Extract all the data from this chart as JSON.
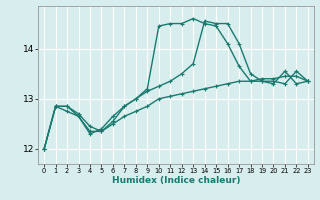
{
  "title": "",
  "xlabel": "Humidex (Indice chaleur)",
  "ylabel": "",
  "background_color": "#d8eeee",
  "grid_color": "#ffffff",
  "line_color": "#1a7a6e",
  "x_values": [
    0,
    1,
    2,
    3,
    4,
    5,
    6,
    7,
    8,
    9,
    10,
    11,
    12,
    13,
    14,
    15,
    16,
    17,
    18,
    19,
    20,
    21,
    22,
    23
  ],
  "line1": [
    12.0,
    12.85,
    12.85,
    12.7,
    12.45,
    12.35,
    12.5,
    12.65,
    12.75,
    12.85,
    13.0,
    13.05,
    13.1,
    13.15,
    13.2,
    13.25,
    13.3,
    13.35,
    13.35,
    13.4,
    13.4,
    13.45,
    13.45,
    13.35
  ],
  "line2": [
    12.0,
    12.85,
    12.85,
    12.65,
    12.35,
    12.35,
    12.55,
    12.85,
    13.0,
    13.2,
    14.45,
    14.5,
    14.5,
    14.6,
    14.5,
    14.45,
    14.1,
    13.65,
    13.35,
    13.35,
    13.3,
    13.55,
    13.3,
    13.35
  ],
  "line3": [
    12.0,
    12.85,
    12.75,
    12.65,
    12.3,
    12.4,
    12.65,
    12.85,
    13.0,
    13.15,
    13.25,
    13.35,
    13.5,
    13.7,
    14.55,
    14.5,
    14.5,
    14.1,
    13.5,
    13.35,
    13.35,
    13.3,
    13.55,
    13.35
  ],
  "yticks": [
    12,
    13,
    14
  ],
  "xtick_labels": [
    "0",
    "1",
    "2",
    "3",
    "4",
    "5",
    "6",
    "7",
    "8",
    "9",
    "10",
    "11",
    "12",
    "13",
    "14",
    "15",
    "16",
    "17",
    "18",
    "19",
    "20",
    "21",
    "22",
    "23"
  ],
  "ylim": [
    11.7,
    14.85
  ],
  "xlim": [
    -0.5,
    23.5
  ],
  "xlabel_fontsize": 6.5,
  "ylabel_fontsize": 6,
  "xtick_fontsize": 4.8,
  "ytick_fontsize": 6.5,
  "linewidth": 1.0,
  "markersize": 2.5,
  "markeredgewidth": 0.8
}
